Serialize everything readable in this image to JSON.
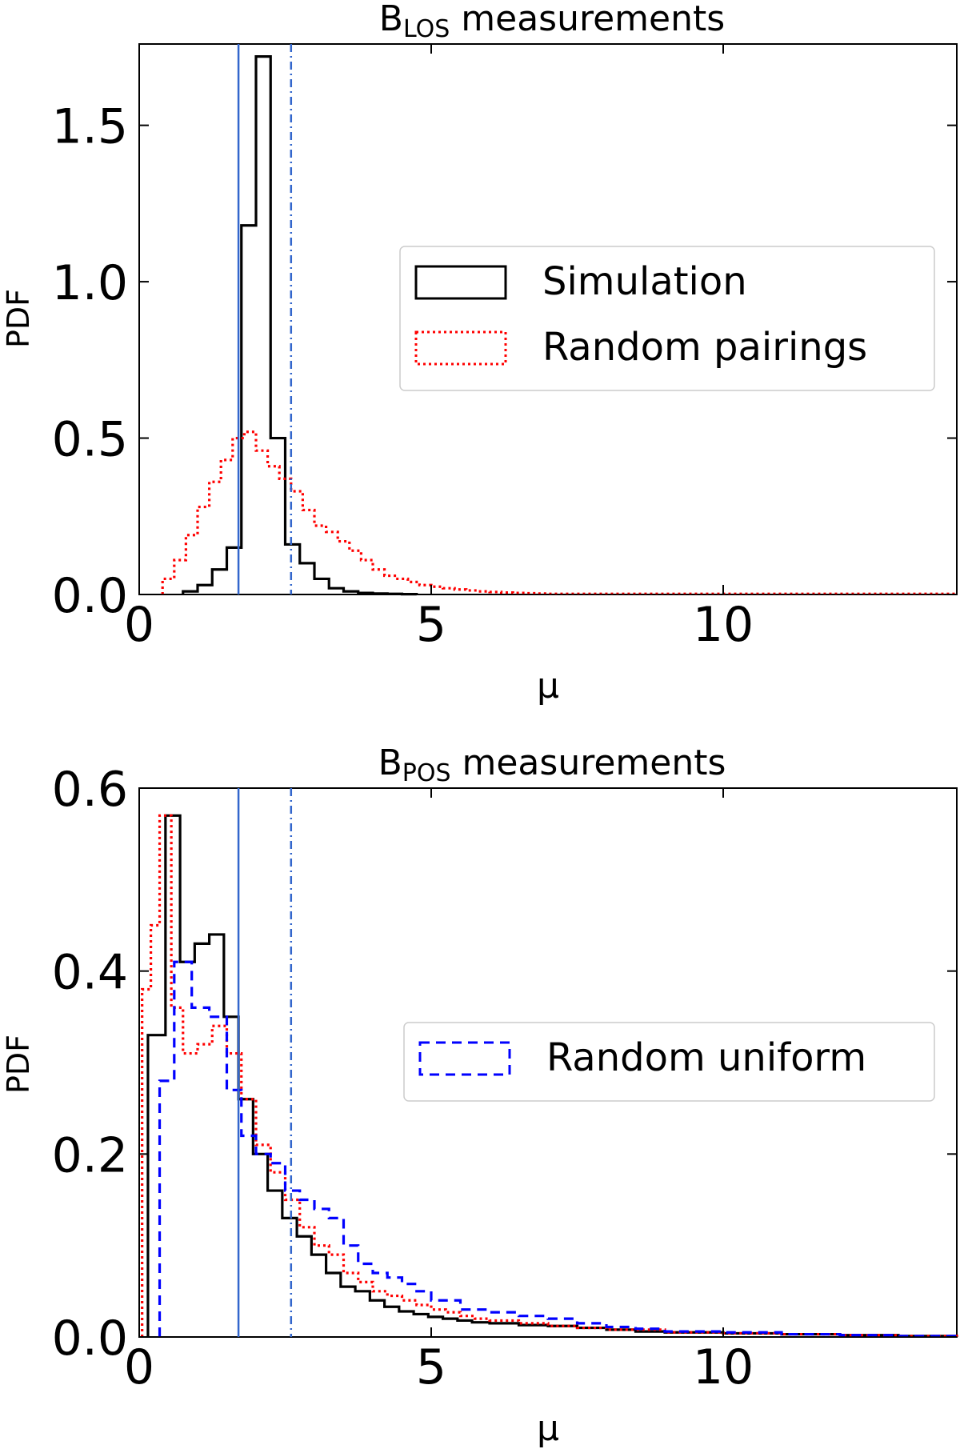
{
  "colors": {
    "simulation": "#000000",
    "random_pairings": "#ff0000",
    "random_uniform": "#0000ff",
    "vline": "#3366cc"
  },
  "chart_data": [
    {
      "type": "histogram-step",
      "title": "B",
      "title_sub": "LOS",
      "title_rest": " measurements",
      "xlabel": "μ",
      "ylabel": "PDF",
      "xlim": [
        0,
        14
      ],
      "ylim": [
        0,
        1.76
      ],
      "xticks": [
        0,
        5,
        10
      ],
      "yticks": [
        0.0,
        0.5,
        1.0,
        1.5
      ],
      "ytick_labels": [
        "0.0",
        "0.5",
        "1.0",
        "1.5"
      ],
      "vlines": [
        {
          "x": 1.7,
          "style": "solid"
        },
        {
          "x": 2.6,
          "style": "dashdot"
        }
      ],
      "legend": {
        "position": "center-right",
        "entries": [
          "Simulation",
          "Random pairings"
        ]
      },
      "series": [
        {
          "name": "Simulation",
          "style": "solid",
          "edges": [
            0.75,
            1.0,
            1.25,
            1.5,
            1.75,
            2.0,
            2.25,
            2.5,
            2.75,
            3.0,
            3.25,
            3.5,
            3.75,
            4.0,
            4.25,
            4.5,
            4.75
          ],
          "values": [
            0.01,
            0.03,
            0.08,
            0.15,
            1.18,
            1.72,
            0.5,
            0.16,
            0.1,
            0.05,
            0.02,
            0.01,
            0.005,
            0.003,
            0.002,
            0.001
          ]
        },
        {
          "name": "Random pairings",
          "style": "dotted",
          "edges": [
            0.4,
            0.6,
            0.8,
            1.0,
            1.2,
            1.4,
            1.6,
            1.8,
            2.0,
            2.2,
            2.4,
            2.6,
            2.8,
            3.0,
            3.2,
            3.4,
            3.6,
            3.8,
            4.0,
            4.2,
            4.4,
            4.6,
            4.8,
            5.0,
            5.2,
            5.4,
            5.6,
            5.8,
            6.0,
            6.2,
            6.4,
            6.6,
            6.8,
            7.0,
            14.0
          ],
          "values": [
            0.05,
            0.11,
            0.19,
            0.28,
            0.36,
            0.43,
            0.5,
            0.52,
            0.46,
            0.41,
            0.37,
            0.33,
            0.27,
            0.22,
            0.2,
            0.17,
            0.14,
            0.11,
            0.08,
            0.06,
            0.05,
            0.04,
            0.03,
            0.025,
            0.02,
            0.016,
            0.013,
            0.01,
            0.008,
            0.006,
            0.005,
            0.004,
            0.003,
            0.002
          ]
        }
      ]
    },
    {
      "type": "histogram-step",
      "title": "B",
      "title_sub": "POS",
      "title_rest": " measurements",
      "xlabel": "μ",
      "ylabel": "PDF",
      "xlim": [
        0,
        14
      ],
      "ylim": [
        0,
        0.6
      ],
      "xticks": [
        0,
        5,
        10
      ],
      "yticks": [
        0.0,
        0.2,
        0.4,
        0.6
      ],
      "ytick_labels": [
        "0.0",
        "0.2",
        "0.4",
        "0.6"
      ],
      "vlines": [
        {
          "x": 1.7,
          "style": "solid"
        },
        {
          "x": 2.6,
          "style": "dashdot"
        }
      ],
      "legend": {
        "position": "center-right",
        "entries": [
          "Random uniform"
        ]
      },
      "series": [
        {
          "name": "Simulation",
          "style": "solid",
          "edges": [
            0.15,
            0.45,
            0.7,
            0.95,
            1.2,
            1.45,
            1.7,
            1.95,
            2.2,
            2.45,
            2.7,
            2.95,
            3.2,
            3.45,
            3.7,
            3.95,
            4.2,
            4.45,
            4.7,
            4.95,
            5.2,
            5.45,
            5.7,
            6.0,
            6.5,
            7.0,
            7.5,
            8.0,
            8.5,
            9.0,
            10.0,
            11.0,
            12.0,
            13.0,
            14.0
          ],
          "values": [
            0.33,
            0.57,
            0.41,
            0.43,
            0.44,
            0.35,
            0.26,
            0.2,
            0.16,
            0.13,
            0.11,
            0.09,
            0.07,
            0.055,
            0.05,
            0.04,
            0.033,
            0.028,
            0.025,
            0.022,
            0.02,
            0.018,
            0.016,
            0.015,
            0.013,
            0.012,
            0.01,
            0.008,
            0.006,
            0.005,
            0.004,
            0.003,
            0.002,
            0.001
          ]
        },
        {
          "name": "Random pairings",
          "style": "dotted",
          "edges": [
            0.05,
            0.2,
            0.35,
            0.55,
            0.75,
            1.0,
            1.25,
            1.5,
            1.75,
            2.0,
            2.25,
            2.5,
            2.75,
            3.0,
            3.25,
            3.5,
            3.75,
            4.0,
            4.25,
            4.5,
            4.75,
            5.0,
            5.25,
            5.5,
            5.75,
            6.0,
            6.5,
            7.0,
            7.5,
            8.0,
            9.0,
            10.0,
            11.0,
            12.0,
            13.0,
            14.0
          ],
          "values": [
            0.38,
            0.45,
            0.57,
            0.36,
            0.31,
            0.32,
            0.34,
            0.31,
            0.26,
            0.21,
            0.18,
            0.15,
            0.12,
            0.1,
            0.09,
            0.07,
            0.06,
            0.05,
            0.045,
            0.04,
            0.035,
            0.03,
            0.027,
            0.023,
            0.02,
            0.018,
            0.015,
            0.012,
            0.01,
            0.008,
            0.005,
            0.004,
            0.003,
            0.002,
            0.001
          ]
        },
        {
          "name": "Random uniform",
          "style": "dashed",
          "edges": [
            0.35,
            0.6,
            0.9,
            1.2,
            1.5,
            1.75,
            2.0,
            2.25,
            2.5,
            2.75,
            3.0,
            3.25,
            3.5,
            3.75,
            4.0,
            4.25,
            4.5,
            4.75,
            5.0,
            5.5,
            6.0,
            6.5,
            7.0,
            7.5,
            8.0,
            8.5,
            9.0,
            10.0,
            11.0,
            12.0,
            13.0,
            14.0
          ],
          "values": [
            0.28,
            0.41,
            0.36,
            0.35,
            0.27,
            0.22,
            0.2,
            0.19,
            0.16,
            0.15,
            0.14,
            0.13,
            0.1,
            0.08,
            0.07,
            0.065,
            0.058,
            0.05,
            0.04,
            0.03,
            0.027,
            0.023,
            0.02,
            0.015,
            0.011,
            0.009,
            0.006,
            0.005,
            0.003,
            0.002,
            0.001
          ]
        }
      ]
    }
  ]
}
